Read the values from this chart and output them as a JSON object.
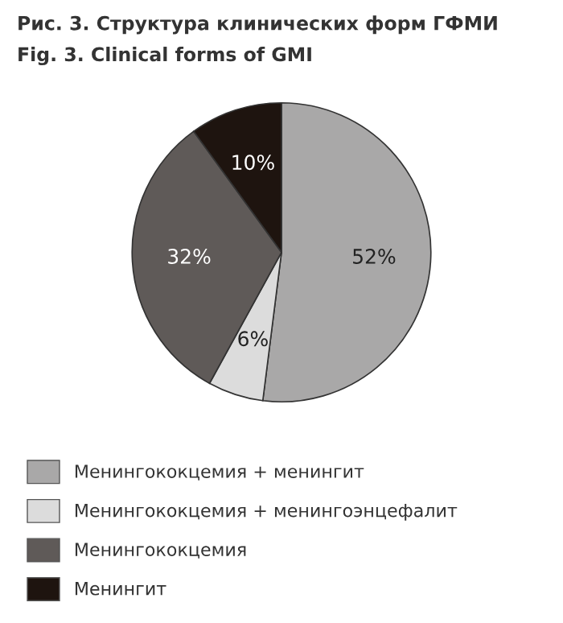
{
  "chart_data": {
    "type": "pie",
    "title": "Рис. 3. Структура клинических форм ГФМИ",
    "subtitle": "Fig. 3. Clinical forms of GMI",
    "categories": [
      "Менингококцемия + менингит",
      "Менингококцемия + менингоэнцефалит",
      "Менингококцемия",
      "Менингит"
    ],
    "values": [
      52,
      6,
      32,
      10
    ],
    "colors": [
      "#a9a8a8",
      "#dcdcdc",
      "#5f5a58",
      "#1e140f"
    ],
    "value_labels": [
      "52%",
      "6%",
      "32%",
      "10%"
    ],
    "legend": "bottom"
  }
}
